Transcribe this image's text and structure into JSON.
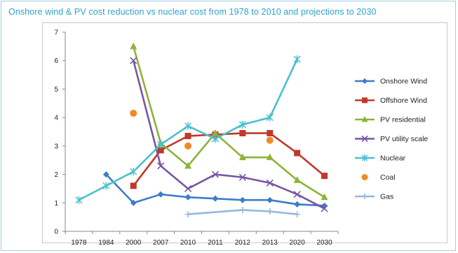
{
  "chart_data": {
    "type": "line",
    "title": "Onshore wind & PV cost reduction vs nuclear cost from 1978 to 2010 and projections to 2030",
    "xlabel": "",
    "ylabel": "",
    "categories": [
      "1978",
      "1984",
      "2000",
      "2007",
      "2010",
      "2011",
      "2012",
      "2013",
      "2020",
      "2030"
    ],
    "ylim": [
      0,
      7
    ],
    "yticks": [
      "0",
      "1",
      "2",
      "3",
      "4",
      "5",
      "6",
      "7"
    ],
    "grid": false,
    "legend": "right",
    "series": [
      {
        "name": "Onshore Wind",
        "color": "#3d7cc9",
        "marker": "diamond",
        "values": [
          null,
          2.0,
          1.0,
          1.3,
          1.2,
          1.15,
          1.1,
          1.1,
          0.95,
          0.9
        ]
      },
      {
        "name": "Offshore Wind",
        "color": "#c0392b",
        "marker": "square",
        "values": [
          null,
          null,
          1.6,
          2.85,
          3.35,
          3.4,
          3.45,
          3.45,
          2.75,
          1.95
        ]
      },
      {
        "name": "PV residential",
        "color": "#8db33a",
        "marker": "triangle",
        "values": [
          null,
          null,
          6.5,
          3.1,
          2.3,
          3.45,
          2.6,
          2.6,
          1.8,
          1.2
        ]
      },
      {
        "name": "PV utility scale",
        "color": "#7a55a3",
        "marker": "x",
        "values": [
          null,
          null,
          6.0,
          2.3,
          1.5,
          2.0,
          1.9,
          1.7,
          1.3,
          0.8
        ]
      },
      {
        "name": "Nuclear",
        "color": "#4bc0cf",
        "marker": "asterisk",
        "values": [
          1.1,
          1.6,
          2.1,
          3.05,
          3.7,
          3.25,
          3.75,
          4.0,
          6.05,
          null
        ]
      },
      {
        "name": "Coal",
        "color": "#f08a24",
        "marker": "circle",
        "line": false,
        "values": [
          null,
          null,
          4.15,
          null,
          3.0,
          null,
          null,
          3.2,
          null,
          null
        ]
      },
      {
        "name": "Gas",
        "color": "#94b8dc",
        "marker": "plus",
        "values": [
          null,
          null,
          null,
          null,
          0.6,
          null,
          0.75,
          0.7,
          0.6,
          null
        ]
      }
    ]
  }
}
